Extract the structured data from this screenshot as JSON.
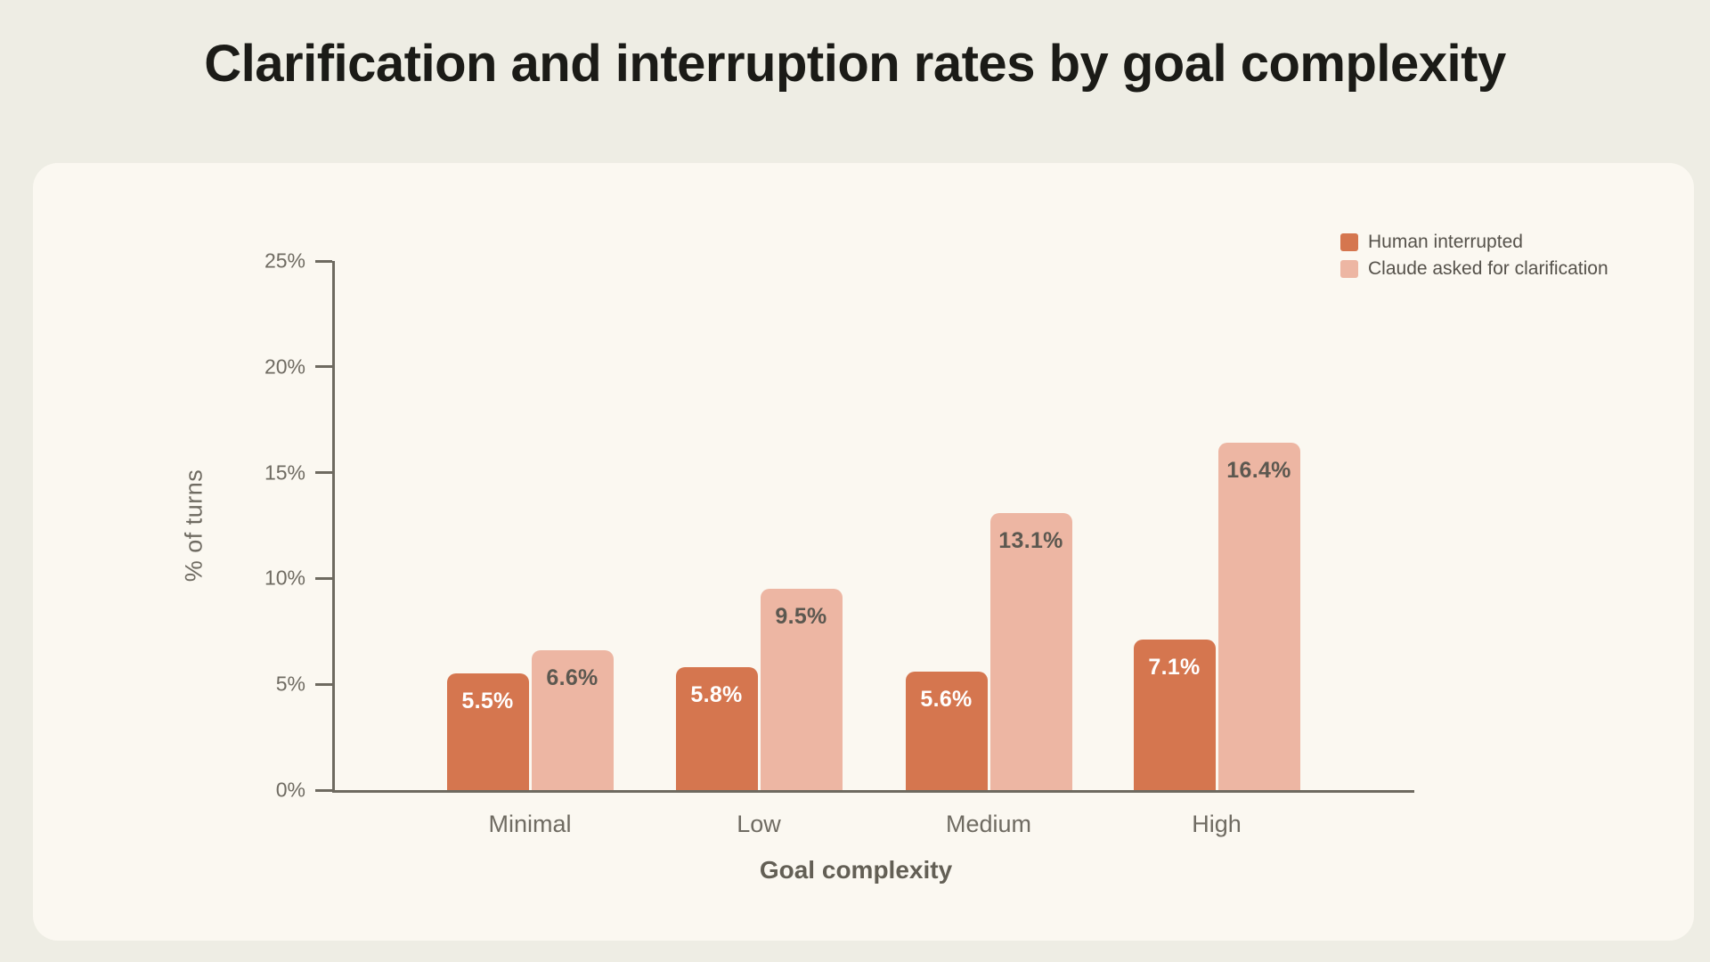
{
  "title": "Clarification and interruption rates by goal complexity",
  "chart_data": {
    "type": "bar",
    "title": "Clarification and interruption rates by goal complexity",
    "categories": [
      "Minimal",
      "Low",
      "Medium",
      "High"
    ],
    "series": [
      {
        "name": "Human interrupted",
        "values": [
          5.5,
          5.8,
          5.6,
          7.1
        ],
        "labels": [
          "5.5%",
          "5.8%",
          "5.6%",
          "7.1%"
        ],
        "color": "#D5764F",
        "label_color": "#FFFFFF"
      },
      {
        "name": "Claude asked for clarification",
        "values": [
          6.6,
          9.5,
          13.1,
          16.4
        ],
        "labels": [
          "6.6%",
          "9.5%",
          "13.1%",
          "16.4%"
        ],
        "color": "#EDB6A3",
        "label_color": "#5C5850"
      }
    ],
    "xlabel": "Goal complexity",
    "ylabel": "% of turns",
    "ylim": [
      0,
      25
    ],
    "yticks": [
      {
        "value": 0,
        "label": "0%"
      },
      {
        "value": 5,
        "label": "5%"
      },
      {
        "value": 10,
        "label": "10%"
      },
      {
        "value": 15,
        "label": "15%"
      },
      {
        "value": 20,
        "label": "20%"
      },
      {
        "value": 25,
        "label": "25%"
      }
    ],
    "grid": false,
    "legend_position": "top-right"
  },
  "colors": {
    "page_bg": "#EEEDE4",
    "card_bg": "#FBF8F1",
    "axis": "#6E6A60",
    "tick_label_text": "#6F6B62",
    "title_text": "#1B1B17",
    "legend_text": "#56524B",
    "bar_dark": "#D5764F",
    "bar_light": "#EDB6A3"
  }
}
